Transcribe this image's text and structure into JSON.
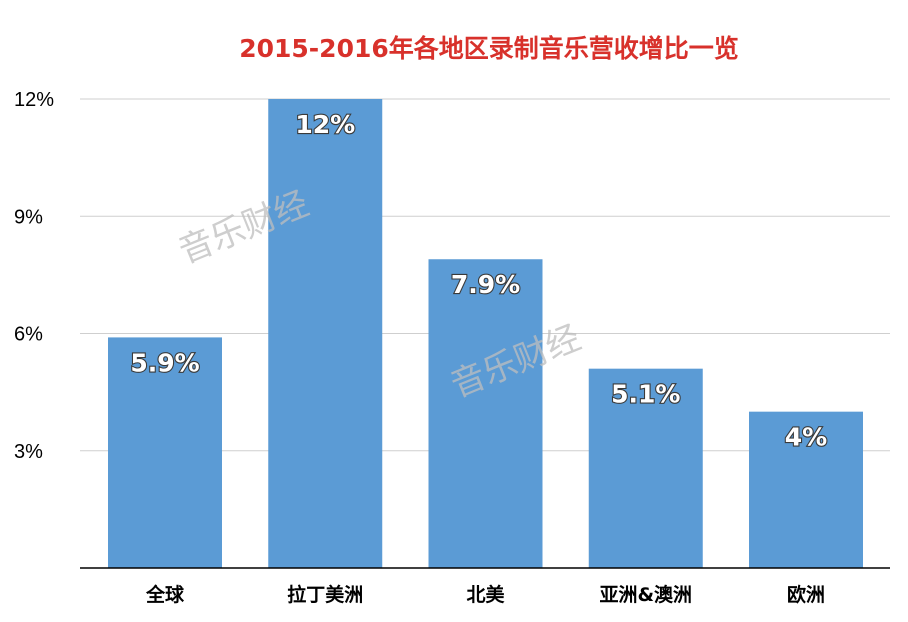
{
  "chart_data": {
    "type": "bar",
    "title": "2015-2016年各地区录制音乐营收增比一览",
    "categories": [
      "全球",
      "拉丁美洲",
      "北美",
      "亚洲&澳洲",
      "欧洲"
    ],
    "values": [
      5.9,
      12,
      7.9,
      5.1,
      4
    ],
    "value_labels": [
      "5.9%",
      "12%",
      "7.9%",
      "5.1%",
      "4%"
    ],
    "ylim": [
      0,
      12
    ],
    "yticks": [
      3,
      6,
      9,
      12
    ],
    "ytick_labels": [
      "3%",
      "6%",
      "9%",
      "12%"
    ],
    "grid": true,
    "legend": "none",
    "colors": {
      "title": "#d8312b",
      "bar": "#5b9bd5",
      "grid": "#cfcfcf",
      "axis": "#000000",
      "watermark": "#bdbdbd"
    }
  },
  "watermarks": [
    "音乐财经",
    "音乐财经"
  ]
}
